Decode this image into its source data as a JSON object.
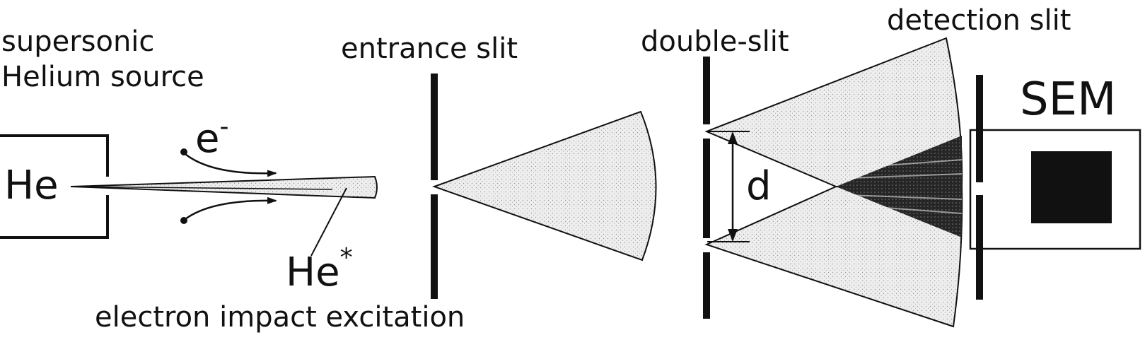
{
  "labels": {
    "source_line1": "supersonic",
    "source_line2": "Helium source",
    "he": "He",
    "electron": "e",
    "electron_charge": "-",
    "he_excited": "He",
    "he_excited_star": "*",
    "entrance_slit": "entrance slit",
    "excitation": "electron impact excitation",
    "double_slit": "double-slit",
    "separation": "d",
    "detection_slit": "detection slit",
    "detector": "SEM"
  },
  "colors": {
    "ink": "#111111",
    "beam_fill": "#e9e9e9",
    "fan_fill": "#e4e4e4",
    "fringe_fill": "#1e1e1e",
    "background": "#ffffff"
  }
}
